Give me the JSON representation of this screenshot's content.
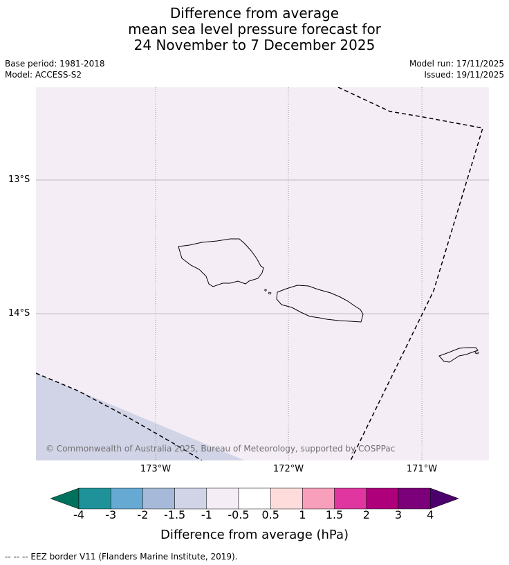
{
  "title": {
    "line1": "Difference from average",
    "line2": "mean sea level pressure forecast for",
    "line3": "24 November to 7 December 2025"
  },
  "meta": {
    "base_period": "Base period: 1981-2018",
    "model": "Model: ACCESS-S2",
    "model_run": "Model run: 17/11/2025",
    "issued": "Issued: 19/11/2025"
  },
  "map": {
    "copyright": "© Commonwealth of Australia 2025, Bureau of Meteorology, supported by COSPPac",
    "lat_labels": [
      "13°S",
      "14°S"
    ],
    "lon_labels": [
      "173°W",
      "172°W",
      "171°W"
    ],
    "background_color": "#f4edf5",
    "lower_region_color": "#d1d3e6"
  },
  "legend": {
    "title": "Difference from average (hPa)",
    "ticks": [
      "-4",
      "-3",
      "-2",
      "-1.5",
      "-1",
      "-0.5",
      "0.5",
      "1",
      "1.5",
      "2",
      "3",
      "4"
    ],
    "colors": {
      "under": "#00715c",
      "bins": [
        "#1e9298",
        "#66a9d3",
        "#a6b9d8",
        "#d1d3e6",
        "#f4edf5",
        "#ffffff",
        "#ffdcdc",
        "#f79fbb",
        "#df369f",
        "#ae007b",
        "#7b0079"
      ],
      "over": "#4b006b"
    }
  },
  "footer": "--  --  -- EEZ border V11 (Flanders Marine Institute, 2019)."
}
